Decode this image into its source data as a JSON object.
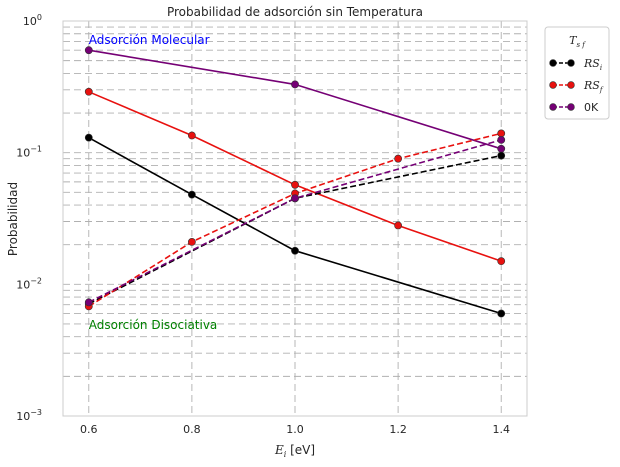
{
  "chart_data": {
    "type": "line",
    "title": "Probabilidad de adsorción sin Temperatura",
    "xlabel": "E_i [eV]",
    "xlabel_parts": {
      "symbol": "E",
      "sub": "i",
      "unit": " [eV]"
    },
    "ylabel": "Probabilidad",
    "xlim": [
      0.55,
      1.45
    ],
    "ylim": [
      0.001,
      1
    ],
    "yscale": "log",
    "x_ticks": [
      0.6,
      0.8,
      1.0,
      1.2,
      1.4
    ],
    "x_tick_labels": [
      "0.6",
      "0.8",
      "1.0",
      "1.2",
      "1.4"
    ],
    "y_ticks": [
      0.001,
      0.01,
      0.1,
      1
    ],
    "y_tick_labels": [
      {
        "base": "10",
        "exp": "−3"
      },
      {
        "base": "10",
        "exp": "−2"
      },
      {
        "base": "10",
        "exp": "−1"
      },
      {
        "base": "10",
        "exp": "0"
      }
    ],
    "grid": true,
    "legend": {
      "title": "T_sf",
      "title_parts": {
        "symbol": "T",
        "sub": "s f"
      },
      "placement": "outside-top-right",
      "entries": [
        {
          "label_symbol": "RS",
          "label_sub": "i",
          "color": "#000000"
        },
        {
          "label_symbol": "RS",
          "label_sub": "f",
          "color": "#e8110f"
        },
        {
          "label_symbol": "0K",
          "label_sub": "",
          "color": "#750075"
        }
      ]
    },
    "annotations": [
      {
        "text": "Adsorción Molecular",
        "color": "#0000ff",
        "x": 0.6,
        "y": 0.72
      },
      {
        "text": "Adsorción Disociativa",
        "color": "#008000",
        "x": 0.6,
        "y": 0.0049
      }
    ],
    "series": [
      {
        "name": "RS_i",
        "style": "solid",
        "color": "#000000",
        "x": [
          0.6,
          0.8,
          1.0,
          1.4
        ],
        "y": [
          0.13,
          0.048,
          0.018,
          0.006
        ]
      },
      {
        "name": "RS_f",
        "style": "solid",
        "color": "#e8110f",
        "x": [
          0.6,
          0.8,
          1.0,
          1.2,
          1.4
        ],
        "y": [
          0.29,
          0.135,
          0.057,
          0.028,
          0.015
        ]
      },
      {
        "name": "0K",
        "style": "solid",
        "color": "#750075",
        "x": [
          0.6,
          1.0,
          1.4
        ],
        "y": [
          0.6,
          0.33,
          0.107
        ]
      },
      {
        "name": "RS_i",
        "style": "dashed",
        "color": "#000000",
        "x": [
          0.6,
          1.0,
          1.4
        ],
        "y": [
          0.0071,
          0.045,
          0.095
        ]
      },
      {
        "name": "RS_f",
        "style": "dashed",
        "color": "#e8110f",
        "x": [
          0.6,
          0.8,
          1.0,
          1.2,
          1.4
        ],
        "y": [
          0.0068,
          0.021,
          0.049,
          0.09,
          0.14
        ]
      },
      {
        "name": "0K",
        "style": "dashed",
        "color": "#750075",
        "x": [
          0.6,
          1.0,
          1.4
        ],
        "y": [
          0.0073,
          0.045,
          0.125
        ]
      }
    ]
  }
}
